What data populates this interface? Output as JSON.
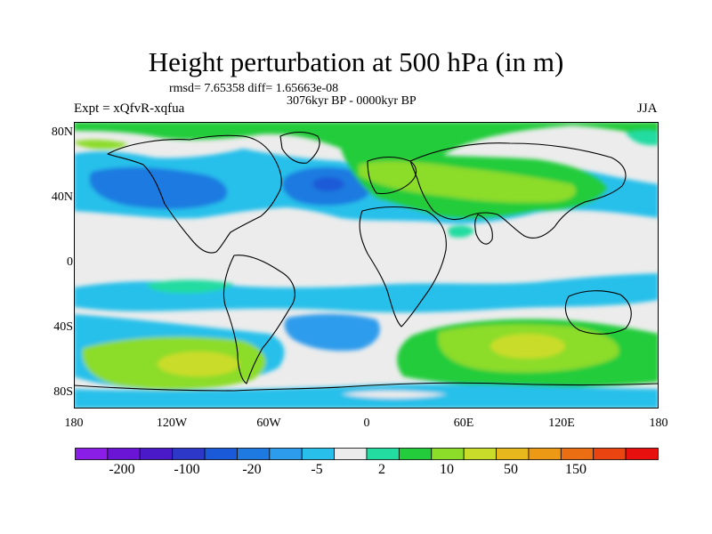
{
  "title": "Height perturbation at 500 hPa (in m)",
  "stats": "rmsd= 7.65358 diff= 1.65663e-08",
  "period": "3076kyr BP - 0000kyr BP",
  "expt": "Expt = xQfvR-xqfua",
  "season": "JJA",
  "y_axis_labels": [
    "80N",
    "40N",
    "0",
    "40S",
    "80S"
  ],
  "x_axis_labels": [
    "180",
    "120W",
    "60W",
    "0",
    "60E",
    "120E",
    "180"
  ],
  "colorbar": {
    "labels": [
      "-200",
      "-100",
      "-20",
      "-5",
      "2",
      "10",
      "50",
      "150"
    ],
    "colors": [
      "#8a1ee6",
      "#6a14d6",
      "#4a1ac8",
      "#2e38c8",
      "#1a5ad8",
      "#1e7ae0",
      "#2e9cec",
      "#28c0ea",
      "#ececec",
      "#22dca0",
      "#22cc3a",
      "#8cdc2a",
      "#cadc2a",
      "#e6b81e",
      "#ec9a16",
      "#ec6e12",
      "#ea4410",
      "#e8100e"
    ]
  },
  "colors": {
    "land_outline": "#000000",
    "neutral_field": "#ececec"
  }
}
